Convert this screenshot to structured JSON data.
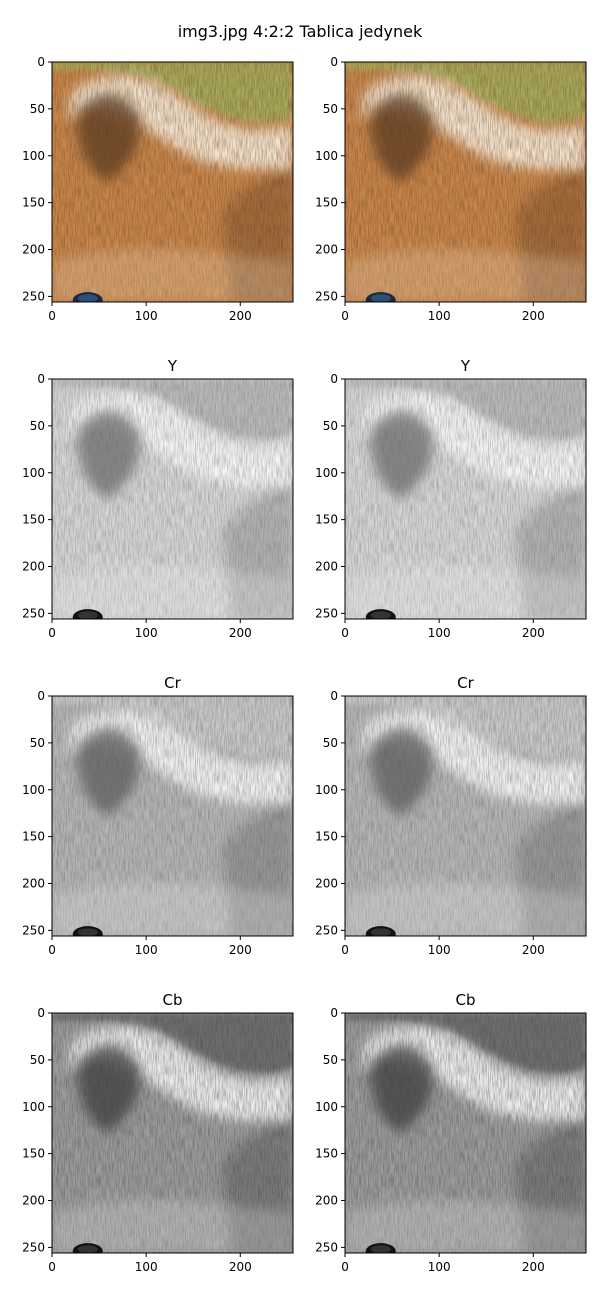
{
  "figure": {
    "title": "img3.jpg 4:2:2 Tablica jedynek"
  },
  "chart_data": {
    "type": "image-grid",
    "title": "img3.jpg 4:2:2 Tablica jedynek",
    "rows": 4,
    "cols": 2,
    "image_size": [
      256,
      256
    ],
    "xlim": [
      0,
      256
    ],
    "ylim": [
      256,
      0
    ],
    "xticks": [
      0,
      100,
      200
    ],
    "yticks": [
      0,
      50,
      100,
      150,
      200,
      250
    ],
    "panels": [
      {
        "title": "",
        "channel": "RGB",
        "row": 0,
        "col": 0
      },
      {
        "title": "",
        "channel": "RGB",
        "row": 0,
        "col": 1
      },
      {
        "title": "Y",
        "channel": "Y",
        "row": 1,
        "col": 0
      },
      {
        "title": "Y",
        "channel": "Y",
        "row": 1,
        "col": 1
      },
      {
        "title": "Cr",
        "channel": "Cr",
        "row": 2,
        "col": 0
      },
      {
        "title": "Cr",
        "channel": "Cr",
        "row": 2,
        "col": 1
      },
      {
        "title": "Cb",
        "channel": "Cb",
        "row": 3,
        "col": 0
      },
      {
        "title": "Cb",
        "channel": "Cb",
        "row": 3,
        "col": 1
      }
    ]
  },
  "colors": {
    "rgb_background": "#a8aa5a",
    "rgb_fur": "#c8864a",
    "rgb_light": "#f3e2cc",
    "rgb_dark": "#5a3a22",
    "y_background": "#b9b9b9",
    "cr_background": "#c9c9c9",
    "cb_background": "#6e6e6e"
  }
}
